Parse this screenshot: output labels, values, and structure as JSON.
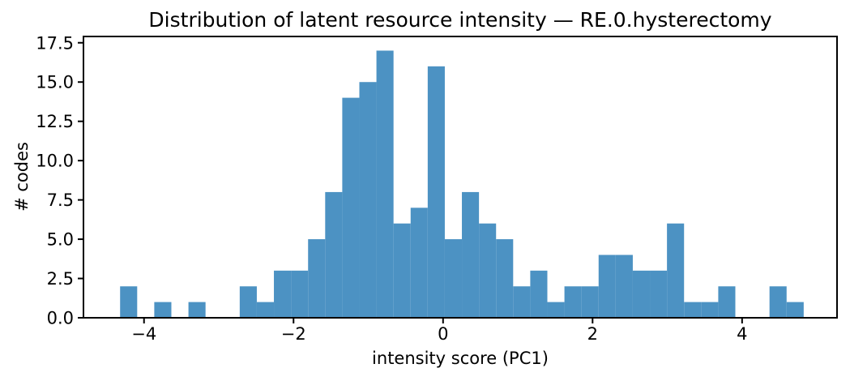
{
  "figure": {
    "background_color": "#ffffff"
  },
  "chart_data": {
    "type": "bar",
    "subtype": "histogram",
    "title": "Distribution of latent resource intensity — RE.0.hysterectomy",
    "xlabel": "intensity score (PC1)",
    "ylabel": "# codes",
    "bar_color": "#4c92c3",
    "axis_color": "#000000",
    "grid": false,
    "legend": false,
    "xlim": [
      -4.81,
      5.27
    ],
    "ylim": [
      0,
      17.9
    ],
    "xticks": [
      -4,
      -2,
      0,
      2,
      4
    ],
    "xtick_labels": [
      "−4",
      "−2",
      "0",
      "2",
      "4"
    ],
    "yticks": [
      0,
      2.5,
      5,
      7.5,
      10,
      12.5,
      15,
      17.5
    ],
    "ytick_labels": [
      "0.0",
      "2.5",
      "5.0",
      "7.5",
      "10.0",
      "12.5",
      "15.0",
      "17.5"
    ],
    "bins": {
      "start": -4.32,
      "width": 0.2286,
      "count": 40
    },
    "counts": [
      2,
      0,
      1,
      0,
      1,
      0,
      0,
      2,
      1,
      3,
      3,
      5,
      8,
      14,
      15,
      17,
      6,
      7,
      16,
      5,
      8,
      6,
      5,
      2,
      3,
      1,
      2,
      2,
      4,
      4,
      3,
      3,
      6,
      1,
      1,
      2,
      0,
      0,
      2,
      1
    ]
  }
}
